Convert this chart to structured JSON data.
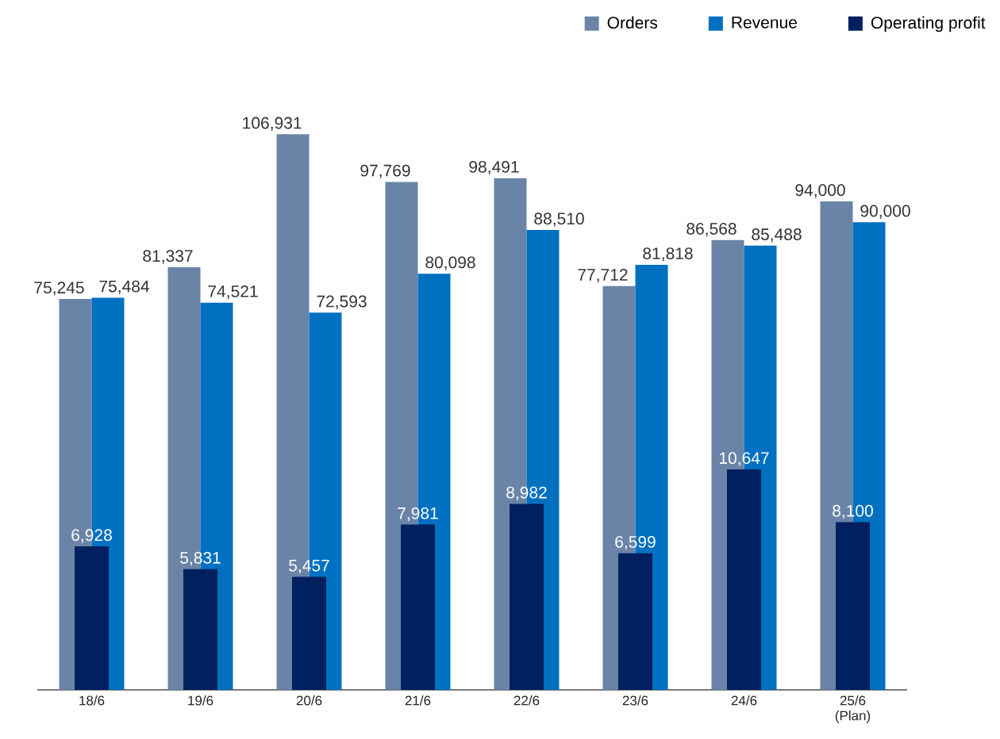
{
  "chart_data": {
    "type": "bar",
    "categories": [
      "18/6",
      "19/6",
      "20/6",
      "21/6",
      "22/6",
      "23/6",
      "24/6",
      "25/6 (Plan)"
    ],
    "series": [
      {
        "name": "Orders",
        "color": "#6a84a8",
        "values": [
          75245,
          81337,
          106931,
          97769,
          98491,
          77712,
          86568,
          94000
        ],
        "value_labels": [
          "75,245",
          "81,337",
          "106,931",
          "97,769",
          "98,491",
          "77,712",
          "86,568",
          "94,000"
        ]
      },
      {
        "name": "Revenue",
        "color": "#0070c0",
        "values": [
          75484,
          74521,
          72593,
          80098,
          88510,
          81818,
          85488,
          90000
        ],
        "value_labels": [
          "75,484",
          "74,521",
          "72,593",
          "80,098",
          "88,510",
          "81,818",
          "85,488",
          "90,000"
        ]
      },
      {
        "name": "Operating profit",
        "color": "#002060",
        "axis": "y2",
        "values": [
          6928,
          5831,
          5457,
          7981,
          8982,
          6599,
          10647,
          8100
        ],
        "value_labels": [
          "6,928",
          "5,831",
          "5,457",
          "7,981",
          "8,982",
          "6,599",
          "10,647",
          "8,100"
        ]
      }
    ],
    "legend": "top right",
    "tick_labels": "x"
  }
}
